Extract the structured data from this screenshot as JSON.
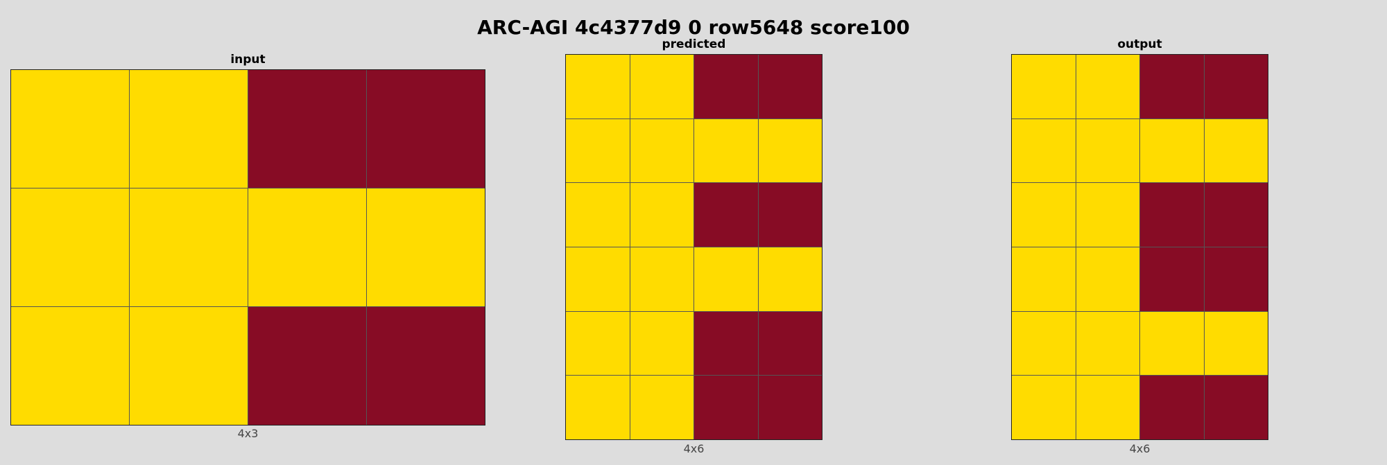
{
  "title": "ARC-AGI 4c4377d9 0 row5648 score100",
  "colors": {
    "background": "#dddddd",
    "4": "#ffdc00",
    "9": "#870c25",
    "grid_line": "#555555"
  },
  "panels": [
    {
      "key": "input",
      "title": "input",
      "caption": "4x3",
      "rows": [
        [
          4,
          4,
          9,
          9
        ],
        [
          4,
          4,
          4,
          4
        ],
        [
          4,
          4,
          9,
          9
        ]
      ]
    },
    {
      "key": "predicted",
      "title": "predicted",
      "caption": "4x6",
      "rows": [
        [
          4,
          4,
          9,
          9
        ],
        [
          4,
          4,
          4,
          4
        ],
        [
          4,
          4,
          9,
          9
        ],
        [
          4,
          4,
          4,
          4
        ],
        [
          4,
          4,
          9,
          9
        ],
        [
          4,
          4,
          9,
          9
        ]
      ]
    },
    {
      "key": "output",
      "title": "output",
      "caption": "4x6",
      "rows": [
        [
          4,
          4,
          9,
          9
        ],
        [
          4,
          4,
          4,
          4
        ],
        [
          4,
          4,
          9,
          9
        ],
        [
          4,
          4,
          9,
          9
        ],
        [
          4,
          4,
          4,
          4
        ],
        [
          4,
          4,
          9,
          9
        ]
      ]
    }
  ]
}
